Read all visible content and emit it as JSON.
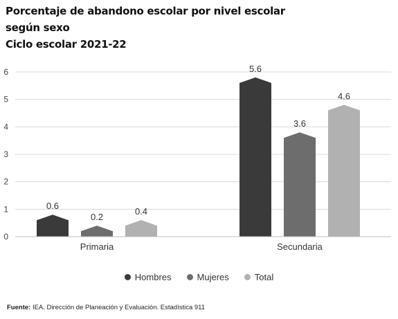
{
  "title_lines": [
    "Porcentaje de abandono escolar por nivel escolar",
    "según sexo",
    "Ciclo escolar 2021-22"
  ],
  "source": {
    "label": "Fuente:",
    "text": " IEA. Dirección de Planeación y Evaluación. Estadística 911"
  },
  "colors": {
    "Hombres": "#3a3a3a",
    "Mujeres": "#6d6d6d",
    "Total": "#b1b1b1"
  },
  "chart_data": {
    "type": "bar",
    "categories": [
      "Primaria",
      "Secundaria"
    ],
    "series": [
      {
        "name": "Hombres",
        "values": [
          0.6,
          5.6
        ]
      },
      {
        "name": "Mujeres",
        "values": [
          0.2,
          3.6
        ]
      },
      {
        "name": "Total",
        "values": [
          0.4,
          4.6
        ]
      }
    ],
    "data_labels": [
      [
        "0.6",
        "0.2",
        "0.4"
      ],
      [
        "5.6",
        "3.6",
        "4.6"
      ]
    ],
    "yticks": [
      "0",
      "1",
      "2",
      "3",
      "4",
      "5",
      "6"
    ],
    "ylim": [
      0,
      6
    ],
    "xlabel": "",
    "ylabel": "",
    "grid": true,
    "legend": "bottom"
  }
}
